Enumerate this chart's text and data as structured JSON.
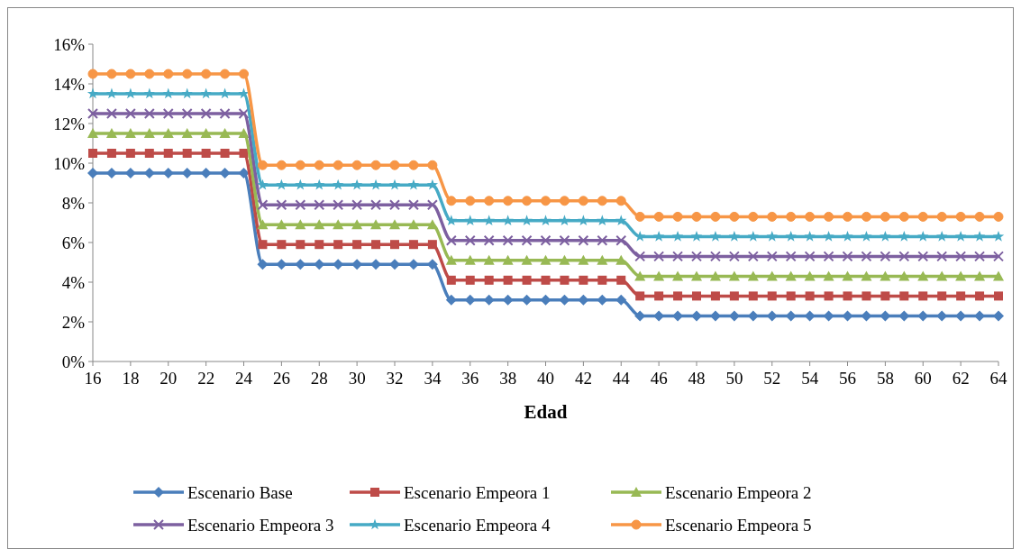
{
  "chart_data": {
    "type": "line",
    "xlabel": "Edad",
    "x": [
      16,
      17,
      18,
      19,
      20,
      21,
      22,
      23,
      24,
      25,
      26,
      27,
      28,
      29,
      30,
      31,
      32,
      33,
      34,
      35,
      36,
      37,
      38,
      39,
      40,
      41,
      42,
      43,
      44,
      45,
      46,
      47,
      48,
      49,
      50,
      51,
      52,
      53,
      54,
      55,
      56,
      57,
      58,
      59,
      60,
      61,
      62,
      63,
      64
    ],
    "xlim": [
      16,
      64
    ],
    "xticks": [
      16,
      18,
      20,
      22,
      24,
      26,
      28,
      30,
      32,
      34,
      36,
      38,
      40,
      42,
      44,
      46,
      48,
      50,
      52,
      54,
      56,
      58,
      60,
      62,
      64
    ],
    "ylim": [
      0,
      16
    ],
    "yticks": [
      {
        "value": 0,
        "label": "0%"
      },
      {
        "value": 2,
        "label": "2%"
      },
      {
        "value": 4,
        "label": "4%"
      },
      {
        "value": 6,
        "label": "6%"
      },
      {
        "value": 8,
        "label": "8%"
      },
      {
        "value": 10,
        "label": "10%"
      },
      {
        "value": 12,
        "label": "12%"
      },
      {
        "value": 14,
        "label": "14%"
      },
      {
        "value": 16,
        "label": "16%"
      }
    ],
    "grid": false,
    "legend": "bottom",
    "line_style": "solid",
    "series": [
      {
        "name": "Escenario Base",
        "color": "#4a7ebb",
        "marker": "diamond",
        "values": [
          9.5,
          9.5,
          9.5,
          9.5,
          9.5,
          9.5,
          9.5,
          9.5,
          9.5,
          4.9,
          4.9,
          4.9,
          4.9,
          4.9,
          4.9,
          4.9,
          4.9,
          4.9,
          4.9,
          3.1,
          3.1,
          3.1,
          3.1,
          3.1,
          3.1,
          3.1,
          3.1,
          3.1,
          3.1,
          2.3,
          2.3,
          2.3,
          2.3,
          2.3,
          2.3,
          2.3,
          2.3,
          2.3,
          2.3,
          2.3,
          2.3,
          2.3,
          2.3,
          2.3,
          2.3,
          2.3,
          2.3,
          2.3,
          2.3
        ]
      },
      {
        "name": "Escenario Empeora 1",
        "color": "#be4b48",
        "marker": "square",
        "values": [
          10.5,
          10.5,
          10.5,
          10.5,
          10.5,
          10.5,
          10.5,
          10.5,
          10.5,
          5.9,
          5.9,
          5.9,
          5.9,
          5.9,
          5.9,
          5.9,
          5.9,
          5.9,
          5.9,
          4.1,
          4.1,
          4.1,
          4.1,
          4.1,
          4.1,
          4.1,
          4.1,
          4.1,
          4.1,
          3.3,
          3.3,
          3.3,
          3.3,
          3.3,
          3.3,
          3.3,
          3.3,
          3.3,
          3.3,
          3.3,
          3.3,
          3.3,
          3.3,
          3.3,
          3.3,
          3.3,
          3.3,
          3.3,
          3.3
        ]
      },
      {
        "name": "Escenario Empeora 2",
        "color": "#98b954",
        "marker": "triangle",
        "values": [
          11.5,
          11.5,
          11.5,
          11.5,
          11.5,
          11.5,
          11.5,
          11.5,
          11.5,
          6.9,
          6.9,
          6.9,
          6.9,
          6.9,
          6.9,
          6.9,
          6.9,
          6.9,
          6.9,
          5.1,
          5.1,
          5.1,
          5.1,
          5.1,
          5.1,
          5.1,
          5.1,
          5.1,
          5.1,
          4.3,
          4.3,
          4.3,
          4.3,
          4.3,
          4.3,
          4.3,
          4.3,
          4.3,
          4.3,
          4.3,
          4.3,
          4.3,
          4.3,
          4.3,
          4.3,
          4.3,
          4.3,
          4.3,
          4.3
        ]
      },
      {
        "name": "Escenario Empeora 3",
        "color": "#7d60a0",
        "marker": "cross",
        "values": [
          12.5,
          12.5,
          12.5,
          12.5,
          12.5,
          12.5,
          12.5,
          12.5,
          12.5,
          7.9,
          7.9,
          7.9,
          7.9,
          7.9,
          7.9,
          7.9,
          7.9,
          7.9,
          7.9,
          6.1,
          6.1,
          6.1,
          6.1,
          6.1,
          6.1,
          6.1,
          6.1,
          6.1,
          6.1,
          5.3,
          5.3,
          5.3,
          5.3,
          5.3,
          5.3,
          5.3,
          5.3,
          5.3,
          5.3,
          5.3,
          5.3,
          5.3,
          5.3,
          5.3,
          5.3,
          5.3,
          5.3,
          5.3,
          5.3
        ]
      },
      {
        "name": "Escenario Empeora 4",
        "color": "#46aac5",
        "marker": "star",
        "values": [
          13.5,
          13.5,
          13.5,
          13.5,
          13.5,
          13.5,
          13.5,
          13.5,
          13.5,
          8.9,
          8.9,
          8.9,
          8.9,
          8.9,
          8.9,
          8.9,
          8.9,
          8.9,
          8.9,
          7.1,
          7.1,
          7.1,
          7.1,
          7.1,
          7.1,
          7.1,
          7.1,
          7.1,
          7.1,
          6.3,
          6.3,
          6.3,
          6.3,
          6.3,
          6.3,
          6.3,
          6.3,
          6.3,
          6.3,
          6.3,
          6.3,
          6.3,
          6.3,
          6.3,
          6.3,
          6.3,
          6.3,
          6.3,
          6.3
        ]
      },
      {
        "name": "Escenario Empeora 5",
        "color": "#f79646",
        "marker": "circle",
        "values": [
          14.5,
          14.5,
          14.5,
          14.5,
          14.5,
          14.5,
          14.5,
          14.5,
          14.5,
          9.9,
          9.9,
          9.9,
          9.9,
          9.9,
          9.9,
          9.9,
          9.9,
          9.9,
          9.9,
          8.1,
          8.1,
          8.1,
          8.1,
          8.1,
          8.1,
          8.1,
          8.1,
          8.1,
          8.1,
          7.3,
          7.3,
          7.3,
          7.3,
          7.3,
          7.3,
          7.3,
          7.3,
          7.3,
          7.3,
          7.3,
          7.3,
          7.3,
          7.3,
          7.3,
          7.3,
          7.3,
          7.3,
          7.3,
          7.3
        ]
      }
    ]
  }
}
